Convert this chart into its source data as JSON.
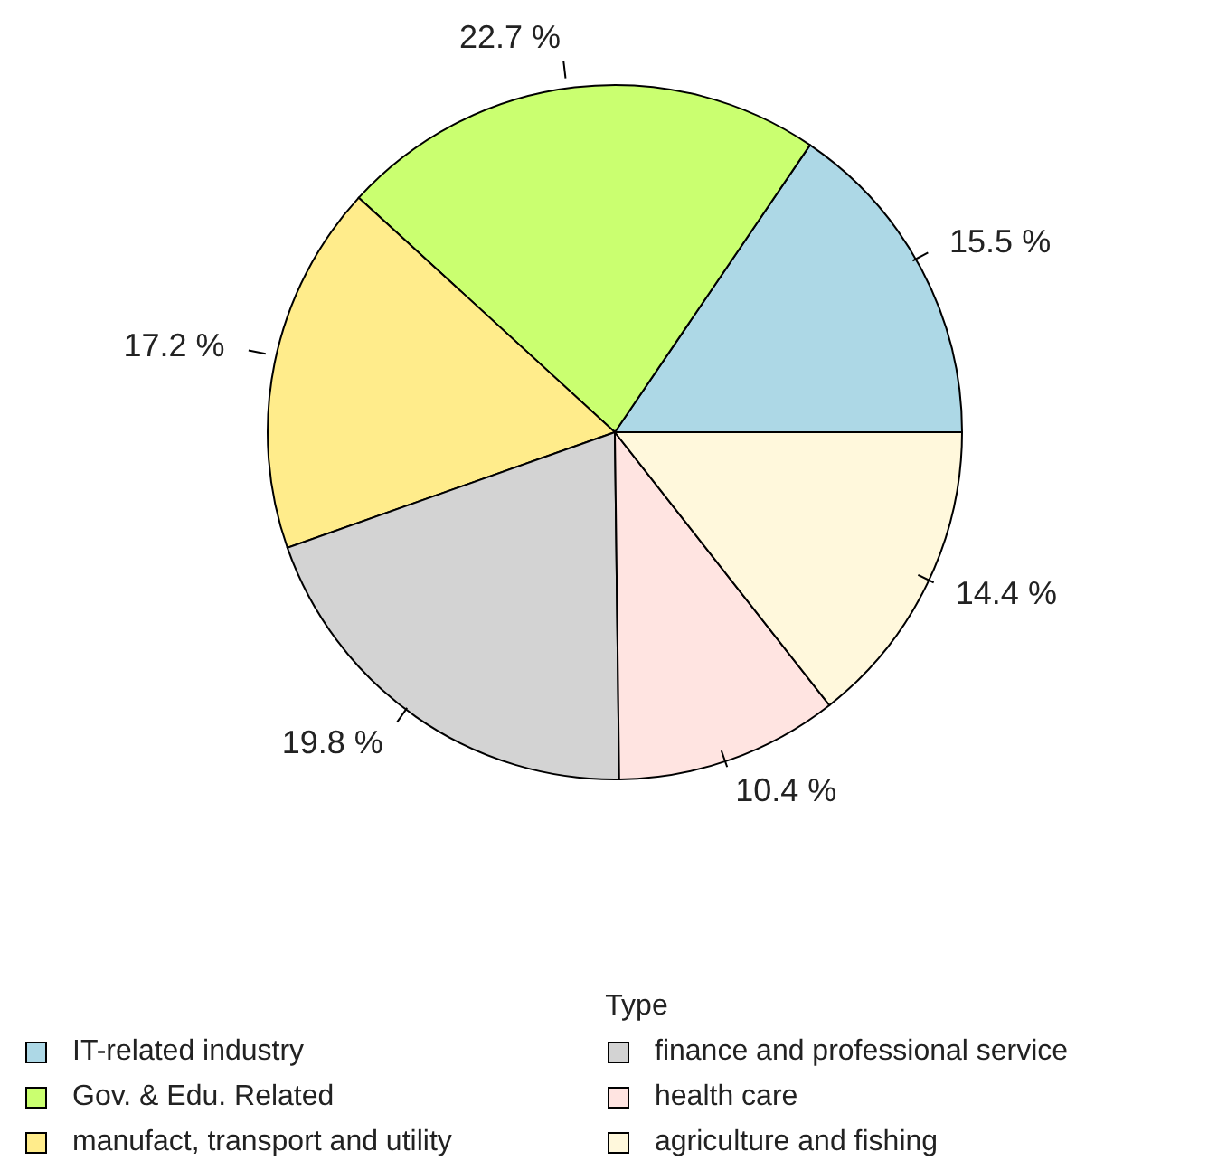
{
  "chart_data": {
    "type": "pie",
    "categories": [
      "IT-related industry",
      "Gov. & Edu. Related",
      "manufact, transport and utility",
      "finance and professional service",
      "health care",
      "agriculture and fishing"
    ],
    "values": [
      15.5,
      22.7,
      17.2,
      19.8,
      10.4,
      14.4
    ],
    "value_labels": [
      "15.5 %",
      "22.7 %",
      "17.2 %",
      "19.8 %",
      "10.4 %",
      "14.4 %"
    ],
    "colors": [
      "#add8e6",
      "#caff70",
      "#ffec8b",
      "#d3d3d3",
      "#ffe4e1",
      "#fff8dc"
    ],
    "legend": "bottom",
    "legend_title": "Type"
  }
}
